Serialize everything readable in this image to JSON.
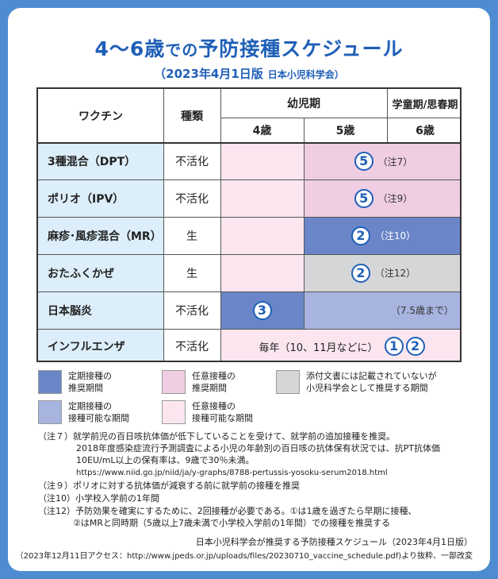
{
  "title_main": "4〜6歳",
  "title_de": "での",
  "title_rest": "予防接種スケジュール",
  "subtitle": "（2023年4月1日版",
  "subtitle_org": "日本小児科学会）",
  "header": {
    "vaccine": "ワクチン",
    "type": "種類",
    "yoji": "幼児期",
    "gakudo": "学童期/思春期",
    "age4": "4歳",
    "age5": "5歳",
    "age6": "6歳"
  },
  "rows": [
    {
      "name": "3種混合（DPT）",
      "type": "不活化",
      "dose": "5",
      "note": "（注7）"
    },
    {
      "name": "ポリオ（IPV）",
      "type": "不活化",
      "dose": "5",
      "note": "（注9）"
    },
    {
      "name": "麻疹･風疹混合（MR）",
      "type": "生",
      "dose": "2",
      "note": "（注10）"
    },
    {
      "name": "おたふくかぜ",
      "type": "生",
      "dose": "2",
      "note": "（注12）"
    },
    {
      "name": "日本脳炎",
      "type": "不活化",
      "dose": "3",
      "note": "（7.5歳まで）"
    },
    {
      "name": "インフルエンザ",
      "type": "不活化",
      "note": "毎年（10、11月などに）",
      "dose1": "1",
      "dose2": "2"
    }
  ],
  "legend": {
    "l1a": "定期接種の",
    "l1b": "推奨期間",
    "l2a": "任意接種の",
    "l2b": "推奨期間",
    "l3a": "添付文書には記載されていないが",
    "l3b": "小児科学会として推奨する期間",
    "l4a": "定期接種の",
    "l4b": "接種可能な期間",
    "l5a": "任意接種の",
    "l5b": "接種可能な期間"
  },
  "colors": {
    "teiki_suisho": "#6a86c8",
    "teiki_kano": "#a7b4df",
    "nini_suisho": "#efcde3",
    "nini_kano": "#fbe6f0",
    "gakkai": "#d4d6d8",
    "vaccine_bg": "#dceef9"
  },
  "footnotes": {
    "n7a": "（注７）就学前児の百日咳抗体価が低下していることを受けて、就学前の追加接種を推奨。",
    "n7b": "2018年度感染症流行予測調査による小児の年齢別の百日咳の抗体保有状況では、抗PT抗体価",
    "n7c": "10EU/mL以上の保有率は、9歳で30％未満。",
    "n7d": "https://www.niid.go.jp/niid/ja/y-graphs/8788-pertussis-yosoku-serum2018.html",
    "n9": "（注９）ポリオに対する抗体価が減衰する前に就学前の接種を推奨",
    "n10": "（注10）小学校入学前の1年間",
    "n12a": "（注12）予防効果を確実にするために、2回接種が必要である。①は1歳を過ぎたら早期に接種、",
    "n12b": "②はMRと同時期（5歳以上7歳未満で小学校入学前の1年間）での接種を推奨する"
  },
  "source1": "日本小児科学会が推奨する予防接種スケジュール（2023年4月1日版）",
  "source2": "（2023年12月11日アクセス：http://www.jpeds.or.jp/uploads/files/20230710_vaccine_schedule.pdf)より抜粋、一部改変"
}
